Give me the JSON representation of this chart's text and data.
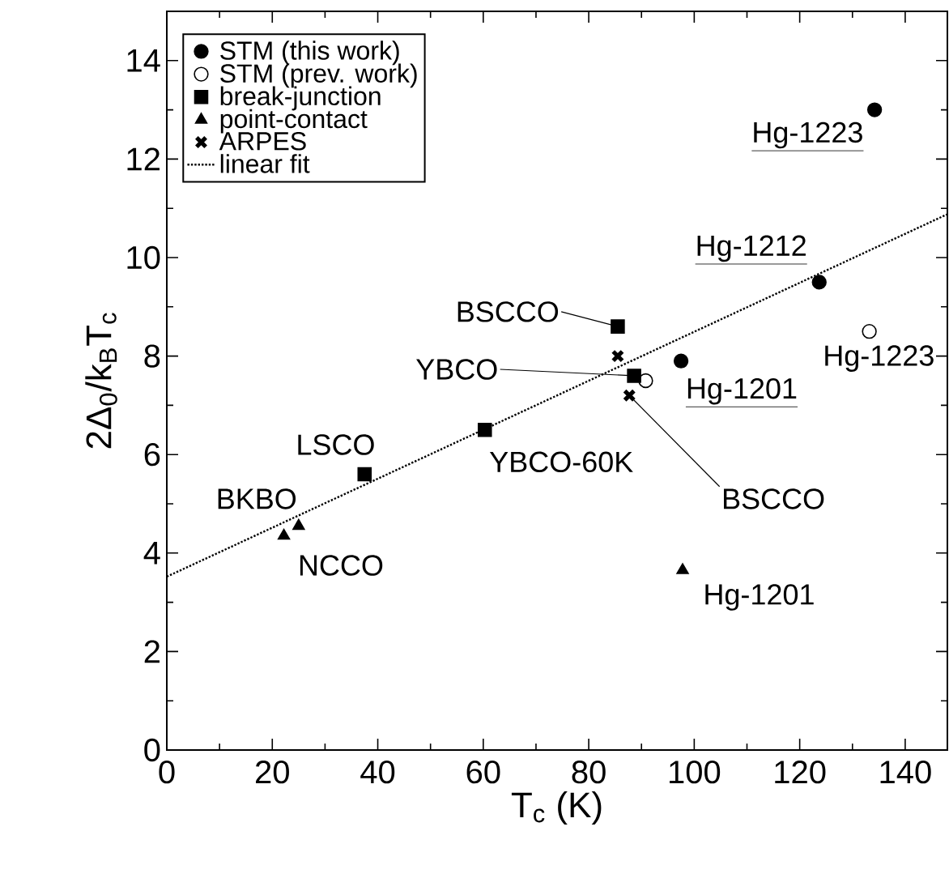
{
  "chart_data": {
    "type": "scatter",
    "xlabel": "T$_{c}$ (K)",
    "ylabel": "2Δ$_{0}$/k$_{B}$T$_{c}$",
    "xlim": [
      0,
      148
    ],
    "ylim": [
      0,
      15
    ],
    "xticks": [
      0,
      20,
      40,
      60,
      80,
      100,
      120,
      140
    ],
    "yticks": [
      0,
      2,
      4,
      6,
      8,
      10,
      12,
      14
    ],
    "grid": false,
    "legend": "top left",
    "series": [
      {
        "name": "STM (this work)",
        "color": "#000000",
        "marker": "circle",
        "x": [
          134.2,
          123.7,
          97.5
        ],
        "values": [
          13.0,
          9.5,
          7.9
        ]
      },
      {
        "name": "STM (prev. work)",
        "color": "#ffffff",
        "marker": "circle",
        "x": [
          133.2,
          90.8
        ],
        "values": [
          8.5,
          7.5
        ]
      },
      {
        "name": "break-junction",
        "color": "#000000",
        "marker": "square",
        "x": [
          85.5,
          88.6,
          37.5,
          60.3
        ],
        "values": [
          8.6,
          7.6,
          5.6,
          6.5
        ]
      },
      {
        "name": "point-contact",
        "color": "#000000",
        "marker": "triangle",
        "x": [
          22.2,
          25.0,
          97.8
        ],
        "values": [
          4.35,
          4.55,
          3.65
        ]
      },
      {
        "name": "ARPES",
        "color": "#000000",
        "marker": "cross",
        "x": [
          85.5,
          87.7
        ],
        "values": [
          8.0,
          7.2
        ]
      },
      {
        "name": "linear fit",
        "type": "line",
        "color": "#000000",
        "line_style": "dotted",
        "marker": "none",
        "x": [
          0,
          148
        ],
        "values": [
          3.52,
          10.88
        ]
      }
    ],
    "annotations": [
      {
        "text": "Hg-1223",
        "x": 134.2,
        "y": 13.0
      },
      {
        "text": "Hg-1212",
        "x": 123.7,
        "y": 9.5
      },
      {
        "text": "Hg-1201",
        "x": 97.5,
        "y": 7.9
      },
      {
        "text": "Hg-1223",
        "x": 133.2,
        "y": 8.5
      },
      {
        "text": "BSCCO",
        "x": 85.5,
        "y": 8.6
      },
      "YBCO",
      {
        "text": "BSCCO",
        "x": 87.7,
        "y": 7.2
      },
      {
        "text": "LSCO",
        "x": 37.5,
        "y": 5.6
      },
      {
        "text": "YBCO-60K",
        "x": 60.3,
        "y": 6.5
      },
      {
        "text": "BKBO",
        "x": 22.2,
        "y": 4.35
      },
      {
        "text": "NCCO",
        "x": 25.0,
        "y": 4.55
      },
      {
        "text": "Hg-1201",
        "x": 97.8,
        "y": 3.65
      }
    ]
  }
}
